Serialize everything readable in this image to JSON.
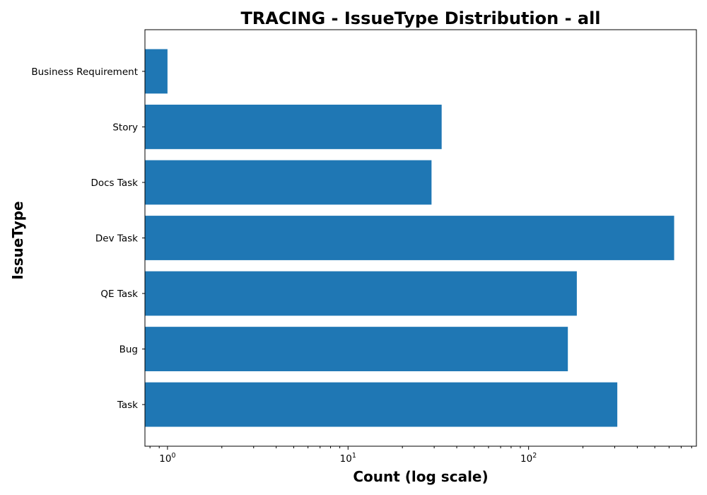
{
  "chart_data": {
    "type": "bar",
    "orientation": "horizontal",
    "title": "TRACING - IssueType Distribution - all",
    "xlabel": "Count (log scale)",
    "ylabel": "IssueType",
    "x_scale": "log",
    "xlim": [
      0.75,
      850
    ],
    "x_ticks": [
      {
        "base": "10",
        "exp": "0",
        "value": 1
      },
      {
        "base": "10",
        "exp": "1",
        "value": 10
      },
      {
        "base": "10",
        "exp": "2",
        "value": 100
      }
    ],
    "categories": [
      "Business Requirement",
      "Story",
      "Docs Task",
      "Dev Task",
      "QE Task",
      "Bug",
      "Task"
    ],
    "values": [
      1,
      33,
      29,
      640,
      185,
      165,
      310
    ],
    "bar_color": "#1f77b4",
    "grid": false
  }
}
